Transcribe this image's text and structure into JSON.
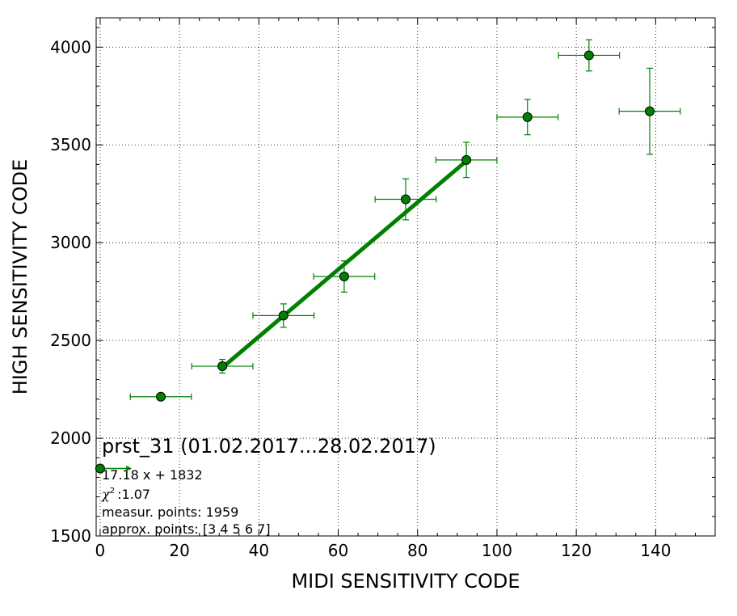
{
  "chart_data": {
    "type": "scatter",
    "title": "prst_31 (01.02.2017...28.02.2017)",
    "xlabel": "MIDI SENSITIVITY CODE",
    "ylabel": "HIGH SENSITIVITY CODE",
    "xlim": [
      -1,
      155
    ],
    "ylim": [
      1500,
      4150
    ],
    "xticks": [
      0,
      20,
      40,
      60,
      80,
      100,
      120,
      140
    ],
    "yticks": [
      1500,
      2000,
      2500,
      3000,
      3500,
      4000
    ],
    "xtick_labels": [
      "0",
      "20",
      "40",
      "60",
      "80",
      "100",
      "120",
      "140"
    ],
    "ytick_labels": [
      "1500",
      "2000",
      "2500",
      "3000",
      "3500",
      "4000"
    ],
    "grid": true,
    "color": "#008000",
    "series": [
      {
        "points": [
          {
            "x": 15.3,
            "y": 2212,
            "xerr": 7.7,
            "yerr": 12
          },
          {
            "x": 30.8,
            "y": 2368,
            "xerr": 7.7,
            "yerr": 35
          },
          {
            "x": 46.2,
            "y": 2627,
            "xerr": 7.7,
            "yerr": 60
          },
          {
            "x": 61.5,
            "y": 2827,
            "xerr": 7.7,
            "yerr": 80
          },
          {
            "x": 77.0,
            "y": 3222,
            "xerr": 7.7,
            "yerr": 105
          },
          {
            "x": 92.3,
            "y": 3423,
            "xerr": 7.7,
            "yerr": 90
          },
          {
            "x": 107.7,
            "y": 3642,
            "xerr": 7.7,
            "yerr": 90
          },
          {
            "x": 123.2,
            "y": 3958,
            "xerr": 7.7,
            "yerr": 80
          },
          {
            "x": 138.5,
            "y": 3672,
            "xerr": 7.7,
            "yerr": 220
          }
        ]
      }
    ],
    "fit": {
      "slope": 17.18,
      "intercept": 1832,
      "x_range": [
        30.8,
        92.3
      ]
    },
    "origin_marker": {
      "x": 0,
      "y": 1845,
      "arrow_to_x": 8
    },
    "annotations": [
      "17.18 x + 1832",
      ":1.07",
      "measur. points: 1959",
      "approx. points: [3 4 5 6 7]"
    ],
    "chi_symbol": "χ",
    "chi_exp": "2"
  }
}
